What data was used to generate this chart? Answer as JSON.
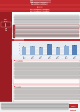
{
  "header_bg": "#c0272d",
  "left_panel_bg": "#c0272d",
  "body_bg": "#ffffff",
  "bar_colors": [
    "#8fafd4",
    "#8fafd4",
    "#8fafd4",
    "#5580b8",
    "#8fafd4",
    "#8fafd4",
    "#5580b8"
  ],
  "bar_values": [
    3.2,
    3.5,
    3.1,
    4.2,
    3.0,
    3.6,
    4.0
  ],
  "chart_bg": "#eef2f8",
  "text_color_dark": "#333333",
  "text_color_light": "#ffffff",
  "accent_red": "#c0272d",
  "section_label_bg": "#c0272d",
  "pink_box_border": "#e08080",
  "pink_box_bg": "#fff4f4",
  "footer_bg": "#f5f5f5",
  "logo_color": "#c0272d",
  "dark_red_left": "#9b1c22"
}
